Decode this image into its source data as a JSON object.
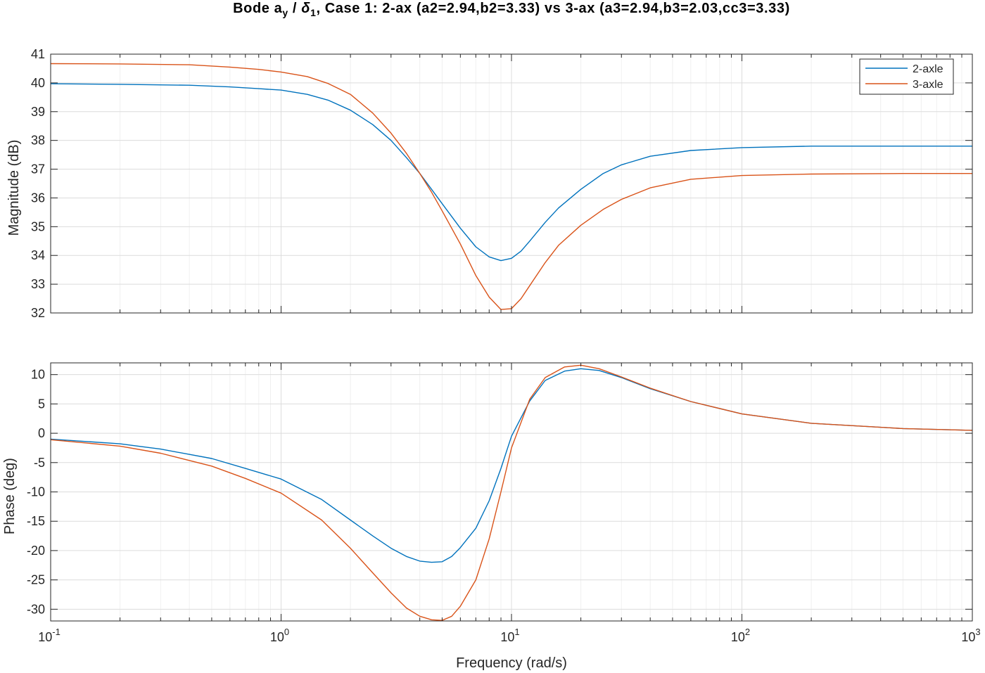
{
  "figure": {
    "title_parts": {
      "before_a": "Bode  a",
      "a_sub": "y",
      "slash": " / ",
      "delta": "δ",
      "delta_sub": "1",
      "after": ",  Case  1:  2-ax  (a2=2.94,b2=3.33)  vs  3-ax  (a3=2.94,b3=2.03,cc3=3.33)"
    },
    "xlabel": "Frequency (rad/s)"
  },
  "chart_data": [
    {
      "type": "line",
      "panel": "magnitude",
      "title": "Bode a_y / δ_1, Case 1: 2-ax (a2=2.94,b2=3.33) vs 3-ax (a3=2.94,b3=2.03,cc3=3.33)",
      "xlabel": "",
      "ylabel": "Magnitude (dB)",
      "xscale": "log",
      "xlim": [
        0.1,
        1000
      ],
      "ylim": [
        32,
        41
      ],
      "yticks": [
        32,
        33,
        34,
        35,
        36,
        37,
        38,
        39,
        40,
        41
      ],
      "xticks": [
        {
          "base": "10",
          "exp": "-1"
        },
        {
          "base": "10",
          "exp": "0"
        },
        {
          "base": "10",
          "exp": "1"
        },
        {
          "base": "10",
          "exp": "2"
        },
        {
          "base": "10",
          "exp": "3"
        }
      ],
      "grid": true,
      "legend": "top-right",
      "series": [
        {
          "name": "2-axle",
          "color": "#0072BD",
          "x": [
            0.1,
            0.2,
            0.4,
            0.6,
            0.8,
            1.0,
            1.3,
            1.6,
            2.0,
            2.5,
            3.0,
            3.5,
            4.0,
            4.5,
            5.0,
            6.0,
            7.0,
            8.0,
            9.0,
            10.0,
            11.0,
            12.0,
            14.0,
            16.0,
            20.0,
            25.0,
            30.0,
            40.0,
            60.0,
            100.0,
            200.0,
            500.0,
            1000.0
          ],
          "values": [
            39.97,
            39.95,
            39.92,
            39.86,
            39.8,
            39.75,
            39.6,
            39.4,
            39.05,
            38.55,
            38.0,
            37.4,
            36.85,
            36.3,
            35.8,
            34.95,
            34.3,
            33.95,
            33.82,
            33.9,
            34.15,
            34.5,
            35.15,
            35.65,
            36.3,
            36.85,
            37.15,
            37.45,
            37.65,
            37.75,
            37.8,
            37.8,
            37.8
          ]
        },
        {
          "name": "3-axle",
          "color": "#D95319",
          "x": [
            0.1,
            0.2,
            0.4,
            0.6,
            0.8,
            1.0,
            1.3,
            1.6,
            2.0,
            2.5,
            3.0,
            3.5,
            4.0,
            4.5,
            5.0,
            6.0,
            7.0,
            8.0,
            9.0,
            10.0,
            11.0,
            12.0,
            14.0,
            16.0,
            20.0,
            25.0,
            30.0,
            40.0,
            60.0,
            100.0,
            200.0,
            500.0,
            1000.0
          ],
          "values": [
            40.67,
            40.66,
            40.63,
            40.55,
            40.47,
            40.38,
            40.22,
            39.98,
            39.6,
            38.95,
            38.25,
            37.55,
            36.85,
            36.2,
            35.55,
            34.4,
            33.3,
            32.55,
            32.12,
            32.15,
            32.5,
            32.95,
            33.75,
            34.35,
            35.05,
            35.6,
            35.95,
            36.35,
            36.65,
            36.78,
            36.83,
            36.85,
            36.85
          ]
        }
      ]
    },
    {
      "type": "line",
      "panel": "phase",
      "title": "",
      "xlabel": "Frequency (rad/s)",
      "ylabel": "Phase (deg)",
      "xscale": "log",
      "xlim": [
        0.1,
        1000
      ],
      "ylim": [
        -32,
        12
      ],
      "yticks": [
        -30,
        -25,
        -20,
        -15,
        -10,
        -5,
        0,
        5,
        10
      ],
      "xticks": [
        {
          "base": "10",
          "exp": "-1"
        },
        {
          "base": "10",
          "exp": "0"
        },
        {
          "base": "10",
          "exp": "1"
        },
        {
          "base": "10",
          "exp": "2"
        },
        {
          "base": "10",
          "exp": "3"
        }
      ],
      "grid": true,
      "series": [
        {
          "name": "2-axle",
          "color": "#0072BD",
          "x": [
            0.1,
            0.2,
            0.3,
            0.5,
            0.7,
            1.0,
            1.5,
            2.0,
            2.5,
            3.0,
            3.5,
            4.0,
            4.5,
            5.0,
            5.5,
            6.0,
            7.0,
            8.0,
            9.0,
            10.0,
            12.0,
            14.0,
            17.0,
            20.0,
            24.0,
            30.0,
            40.0,
            60.0,
            100.0,
            200.0,
            500.0,
            1000.0
          ],
          "values": [
            -1.0,
            -1.8,
            -2.7,
            -4.3,
            -6.0,
            -7.8,
            -11.3,
            -14.8,
            -17.5,
            -19.6,
            -21.0,
            -21.8,
            -22.0,
            -21.9,
            -21.0,
            -19.5,
            -16.2,
            -11.5,
            -6.0,
            -0.5,
            5.5,
            9.0,
            10.6,
            11.0,
            10.7,
            9.5,
            7.6,
            5.4,
            3.3,
            1.7,
            0.8,
            0.5
          ]
        },
        {
          "name": "3-axle",
          "color": "#D95319",
          "x": [
            0.1,
            0.2,
            0.3,
            0.5,
            0.7,
            1.0,
            1.5,
            2.0,
            2.5,
            3.0,
            3.5,
            4.0,
            4.5,
            5.0,
            5.5,
            6.0,
            7.0,
            8.0,
            9.0,
            10.0,
            12.0,
            14.0,
            17.0,
            20.0,
            24.0,
            30.0,
            40.0,
            60.0,
            100.0,
            200.0,
            500.0,
            1000.0
          ],
          "values": [
            -1.1,
            -2.2,
            -3.4,
            -5.6,
            -7.7,
            -10.2,
            -14.8,
            -19.6,
            -23.8,
            -27.2,
            -29.8,
            -31.2,
            -31.8,
            -31.9,
            -31.2,
            -29.5,
            -25.0,
            -18.0,
            -10.0,
            -2.5,
            5.8,
            9.5,
            11.3,
            11.6,
            11.0,
            9.6,
            7.7,
            5.4,
            3.3,
            1.7,
            0.8,
            0.5
          ]
        }
      ]
    }
  ]
}
